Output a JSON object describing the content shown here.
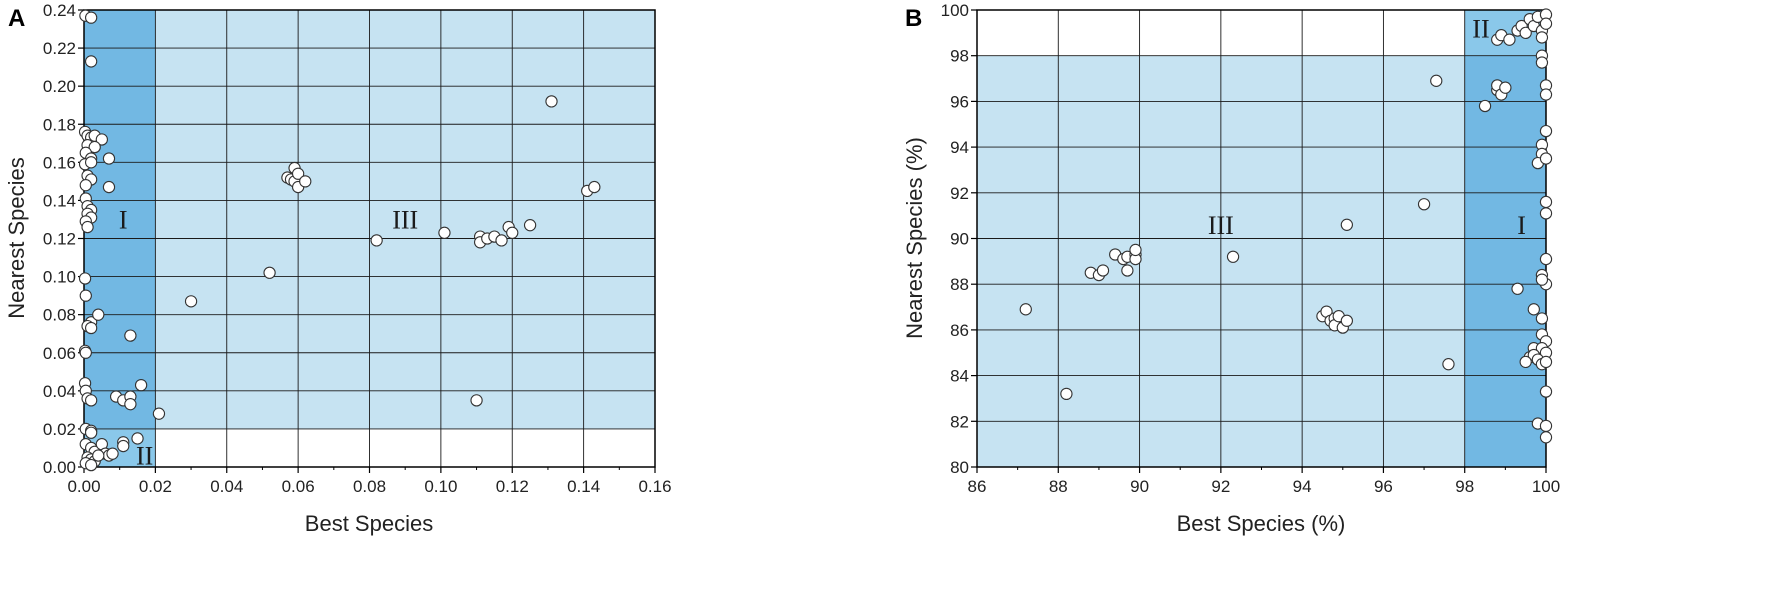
{
  "chart_data": [
    {
      "type": "scatter",
      "panel_label": "A",
      "xlabel": "Best Species",
      "ylabel": "Nearest Species",
      "xlim": [
        0,
        0.16
      ],
      "ylim": [
        0,
        0.24
      ],
      "xticks": [
        "0.00",
        "0.02",
        "0.04",
        "0.06",
        "0.08",
        "0.10",
        "0.12",
        "0.14",
        "0.16"
      ],
      "yticks": [
        "0.00",
        "0.02",
        "0.04",
        "0.06",
        "0.08",
        "0.10",
        "0.12",
        "0.14",
        "0.16",
        "0.18",
        "0.20",
        "0.22",
        "0.24"
      ],
      "grid": true,
      "regions": [
        {
          "label": "III",
          "x": [
            0.0,
            0.16
          ],
          "y": [
            0.02,
            0.24
          ],
          "color": "#c6e3f2",
          "label_at": [
            0.09,
            0.13
          ]
        },
        {
          "label": "I",
          "x": [
            0.0,
            0.02
          ],
          "y": [
            0.0,
            0.24
          ],
          "color": "#72b8e3",
          "label_at": [
            0.011,
            0.13
          ]
        },
        {
          "label": "II",
          "x": [
            0.0,
            0.02
          ],
          "y": [
            0.0,
            0.02
          ],
          "color": "#8ac8ea",
          "label_at": [
            0.017,
            0.006
          ]
        }
      ],
      "points": [
        [
          0.0004,
          0.237
        ],
        [
          0.002,
          0.236
        ],
        [
          0.002,
          0.213
        ],
        [
          0.0003,
          0.176
        ],
        [
          0.001,
          0.174
        ],
        [
          0.002,
          0.173
        ],
        [
          0.003,
          0.174
        ],
        [
          0.005,
          0.172
        ],
        [
          0.001,
          0.169
        ],
        [
          0.003,
          0.168
        ],
        [
          0.0005,
          0.165
        ],
        [
          0.002,
          0.162
        ],
        [
          0.007,
          0.162
        ],
        [
          0.0003,
          0.159
        ],
        [
          0.002,
          0.16
        ],
        [
          0.001,
          0.153
        ],
        [
          0.002,
          0.151
        ],
        [
          0.0005,
          0.148
        ],
        [
          0.007,
          0.147
        ],
        [
          0.0005,
          0.141
        ],
        [
          0.001,
          0.137
        ],
        [
          0.002,
          0.135
        ],
        [
          0.001,
          0.133
        ],
        [
          0.002,
          0.131
        ],
        [
          0.0005,
          0.129
        ],
        [
          0.001,
          0.126
        ],
        [
          0.0003,
          0.099
        ],
        [
          0.0005,
          0.09
        ],
        [
          0.002,
          0.076
        ],
        [
          0.001,
          0.074
        ],
        [
          0.002,
          0.073
        ],
        [
          0.004,
          0.08
        ],
        [
          0.0003,
          0.061
        ],
        [
          0.0005,
          0.06
        ],
        [
          0.0003,
          0.044
        ],
        [
          0.0005,
          0.04
        ],
        [
          0.001,
          0.036
        ],
        [
          0.002,
          0.035
        ],
        [
          0.013,
          0.069
        ],
        [
          0.009,
          0.037
        ],
        [
          0.011,
          0.035
        ],
        [
          0.013,
          0.037
        ],
        [
          0.013,
          0.033
        ],
        [
          0.016,
          0.043
        ],
        [
          0.0005,
          0.02
        ],
        [
          0.002,
          0.019
        ],
        [
          0.002,
          0.018
        ],
        [
          0.0005,
          0.012
        ],
        [
          0.002,
          0.01
        ],
        [
          0.003,
          0.008
        ],
        [
          0.005,
          0.012
        ],
        [
          0.006,
          0.007
        ],
        [
          0.007,
          0.006
        ],
        [
          0.008,
          0.007
        ],
        [
          0.001,
          0.005
        ],
        [
          0.002,
          0.004
        ],
        [
          0.003,
          0.003
        ],
        [
          0.004,
          0.006
        ],
        [
          0.011,
          0.013
        ],
        [
          0.011,
          0.011
        ],
        [
          0.015,
          0.015
        ],
        [
          0.0005,
          0.002
        ],
        [
          0.002,
          0.001
        ],
        [
          0.021,
          0.028
        ],
        [
          0.03,
          0.087
        ],
        [
          0.052,
          0.102
        ],
        [
          0.057,
          0.152
        ],
        [
          0.058,
          0.151
        ],
        [
          0.059,
          0.157
        ],
        [
          0.059,
          0.15
        ],
        [
          0.06,
          0.154
        ],
        [
          0.06,
          0.147
        ],
        [
          0.062,
          0.15
        ],
        [
          0.082,
          0.119
        ],
        [
          0.101,
          0.123
        ],
        [
          0.11,
          0.035
        ],
        [
          0.111,
          0.121
        ],
        [
          0.111,
          0.118
        ],
        [
          0.113,
          0.12
        ],
        [
          0.115,
          0.121
        ],
        [
          0.117,
          0.119
        ],
        [
          0.119,
          0.126
        ],
        [
          0.12,
          0.123
        ],
        [
          0.125,
          0.127
        ],
        [
          0.131,
          0.192
        ],
        [
          0.141,
          0.145
        ],
        [
          0.143,
          0.147
        ]
      ]
    },
    {
      "type": "scatter",
      "panel_label": "B",
      "xlabel": "Best Species (%)",
      "ylabel": "Nearest Species (%)",
      "xlim": [
        86,
        100
      ],
      "ylim": [
        80,
        100
      ],
      "xticks": [
        "86",
        "88",
        "90",
        "92",
        "94",
        "96",
        "98",
        "100"
      ],
      "yticks": [
        "80",
        "82",
        "84",
        "86",
        "88",
        "90",
        "92",
        "94",
        "96",
        "98",
        "100"
      ],
      "grid": true,
      "regions": [
        {
          "label": "III",
          "x": [
            86,
            100
          ],
          "y": [
            80,
            98
          ],
          "color": "#c6e3f2",
          "label_at": [
            92,
            90.6
          ]
        },
        {
          "label": "I",
          "x": [
            98,
            100
          ],
          "y": [
            80,
            98
          ],
          "color": "#72b8e3",
          "label_at": [
            99.4,
            90.6
          ]
        },
        {
          "label": "II",
          "x": [
            98,
            100
          ],
          "y": [
            98,
            100
          ],
          "color": "#8ac8ea",
          "label_at": [
            98.4,
            99.2
          ]
        }
      ],
      "points": [
        [
          87.2,
          86.9
        ],
        [
          88.2,
          83.2
        ],
        [
          88.8,
          88.5
        ],
        [
          89.0,
          88.4
        ],
        [
          89.1,
          88.6
        ],
        [
          89.4,
          89.3
        ],
        [
          89.6,
          89.1
        ],
        [
          89.7,
          88.6
        ],
        [
          89.7,
          89.2
        ],
        [
          89.9,
          89.3
        ],
        [
          89.9,
          89.1
        ],
        [
          89.9,
          89.5
        ],
        [
          92.3,
          89.2
        ],
        [
          94.5,
          86.6
        ],
        [
          94.6,
          86.8
        ],
        [
          94.7,
          86.4
        ],
        [
          94.8,
          86.5
        ],
        [
          94.8,
          86.2
        ],
        [
          94.9,
          86.6
        ],
        [
          95.0,
          86.1
        ],
        [
          95.1,
          86.4
        ],
        [
          95.1,
          90.6
        ],
        [
          97.0,
          91.5
        ],
        [
          97.3,
          96.9
        ],
        [
          97.6,
          84.5
        ],
        [
          98.8,
          98.7
        ],
        [
          98.9,
          98.9
        ],
        [
          99.1,
          98.7
        ],
        [
          99.3,
          99.1
        ],
        [
          99.4,
          99.3
        ],
        [
          99.5,
          99.0
        ],
        [
          99.6,
          99.6
        ],
        [
          99.7,
          99.3
        ],
        [
          99.8,
          99.7
        ],
        [
          99.9,
          99.1
        ],
        [
          99.9,
          98.8
        ],
        [
          100.0,
          99.8
        ],
        [
          100.0,
          99.4
        ],
        [
          98.5,
          95.8
        ],
        [
          98.8,
          96.5
        ],
        [
          98.8,
          96.7
        ],
        [
          98.9,
          96.3
        ],
        [
          99.0,
          96.6
        ],
        [
          99.9,
          98.0
        ],
        [
          99.9,
          97.7
        ],
        [
          100.0,
          96.7
        ],
        [
          100.0,
          96.3
        ],
        [
          100.0,
          94.7
        ],
        [
          99.9,
          94.1
        ],
        [
          99.9,
          93.7
        ],
        [
          99.8,
          93.3
        ],
        [
          100.0,
          93.5
        ],
        [
          100.0,
          91.6
        ],
        [
          100.0,
          91.1
        ],
        [
          99.3,
          87.8
        ],
        [
          99.9,
          88.4
        ],
        [
          100.0,
          88.0
        ],
        [
          99.9,
          88.2
        ],
        [
          100.0,
          89.1
        ],
        [
          99.7,
          86.9
        ],
        [
          99.9,
          86.5
        ],
        [
          99.9,
          85.8
        ],
        [
          100.0,
          85.5
        ],
        [
          99.7,
          85.2
        ],
        [
          99.9,
          85.2
        ],
        [
          100.0,
          85.0
        ],
        [
          99.6,
          84.8
        ],
        [
          99.7,
          84.9
        ],
        [
          99.8,
          84.7
        ],
        [
          99.5,
          84.6
        ],
        [
          99.9,
          84.5
        ],
        [
          100.0,
          84.6
        ],
        [
          100.0,
          83.3
        ],
        [
          99.8,
          81.9
        ],
        [
          100.0,
          81.8
        ],
        [
          100.0,
          81.3
        ]
      ]
    }
  ]
}
